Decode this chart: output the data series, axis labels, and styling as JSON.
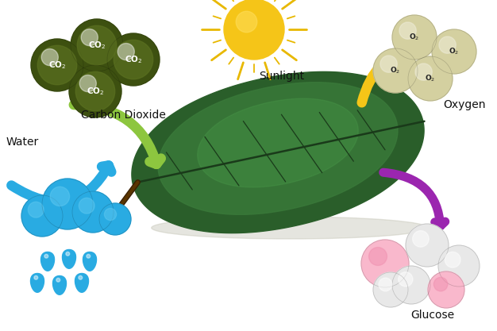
{
  "bg_color": "#ffffff",
  "leaf_color_outer": "#2a5e2a",
  "leaf_color_mid": "#3a7a3a",
  "leaf_color_bright": "#4a9a4a",
  "leaf_vein_color": "#1a3a1a",
  "sun_color": "#f5c518",
  "sun_ray_color": "#e8b800",
  "co2_ball_color_outer": "#3d5010",
  "co2_ball_color_inner": "#5a7020",
  "co2_text_color": "#ffffff",
  "arrow_green_color": "#8dc63f",
  "arrow_yellow_color": "#f5c518",
  "arrow_blue_color": "#29abe2",
  "arrow_purple_color": "#9b26af",
  "o2_ball_color": "#d4d0a0",
  "o2_ball_shine": "#f0eedc",
  "o2_text_color": "#222222",
  "cloud_color_outer": "#29abe2",
  "cloud_color_inner": "#5ec8f0",
  "rain_color": "#29abe2",
  "glucose_pink_color": "#f9b8cc",
  "glucose_pink_dark": "#f090b0",
  "glucose_white_color": "#e8e8e8",
  "glucose_white_shine": "#ffffff",
  "label_carbon": "Carbon Dioxide",
  "label_sunlight": "Sunlight",
  "label_oxygen": "Oxygen",
  "label_water": "Water",
  "label_glucose": "Glucose",
  "label_fontsize": 10,
  "label_color": "#111111",
  "shadow_color": "#c0c0b0"
}
